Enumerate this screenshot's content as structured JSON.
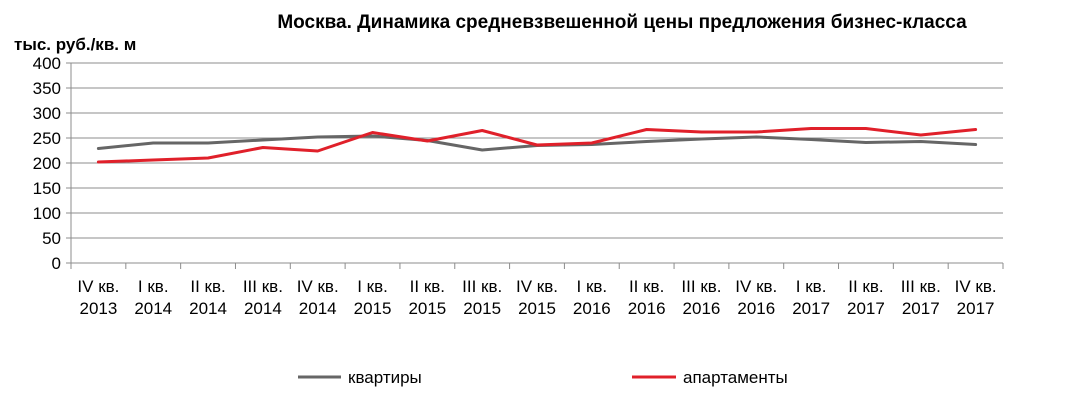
{
  "chart_data": {
    "type": "line",
    "title": "Москва. Динамика средневзвешенной цены предложения бизнес-класса",
    "ylabel": "тыс. руб./кв. м",
    "xlabel": "",
    "ylim": [
      0,
      400
    ],
    "yticks": [
      0,
      50,
      100,
      150,
      200,
      250,
      300,
      350,
      400
    ],
    "grid": true,
    "legend_position": "bottom",
    "categories": [
      [
        "IV кв.",
        "2013"
      ],
      [
        "I кв.",
        "2014"
      ],
      [
        "II кв.",
        "2014"
      ],
      [
        "III кв.",
        "2014"
      ],
      [
        "IV кв.",
        "2014"
      ],
      [
        "I кв.",
        "2015"
      ],
      [
        "II кв.",
        "2015"
      ],
      [
        "III кв.",
        "2015"
      ],
      [
        "IV кв.",
        "2015"
      ],
      [
        "I кв.",
        "2016"
      ],
      [
        "II кв.",
        "2016"
      ],
      [
        "III кв.",
        "2016"
      ],
      [
        "IV кв.",
        "2016"
      ],
      [
        "I кв.",
        "2017"
      ],
      [
        "II кв.",
        "2017"
      ],
      [
        "III кв.",
        "2017"
      ],
      [
        "IV кв.",
        "2017"
      ]
    ],
    "series": [
      {
        "name": "квартиры",
        "color": "#666666",
        "values": [
          229,
          240,
          240,
          246,
          252,
          254,
          245,
          226,
          235,
          237,
          243,
          248,
          252,
          247,
          241,
          243,
          237
        ]
      },
      {
        "name": "апартаменты",
        "color": "#e0202a",
        "values": [
          202,
          206,
          210,
          231,
          224,
          261,
          244,
          265,
          236,
          240,
          267,
          262,
          262,
          269,
          269,
          256,
          267
        ]
      }
    ]
  }
}
